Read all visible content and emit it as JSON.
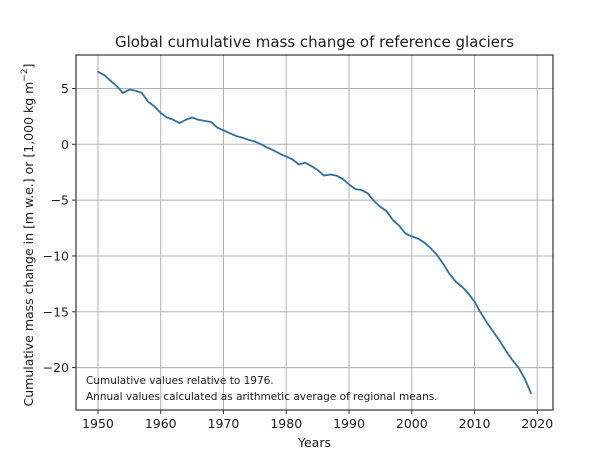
{
  "chart_data": {
    "type": "line",
    "title": "Global cumulative mass change of reference glaciers",
    "xlabel": "Years",
    "ylabel_main": "Cumulative mass change in [m w.e.] or [1,000 kg m",
    "ylabel_sup": "−2",
    "ylabel_end": "]",
    "xlim": [
      1946.5,
      2022.5
    ],
    "ylim": [
      -23.8,
      8.0
    ],
    "xticks": [
      1950,
      1960,
      1970,
      1980,
      1990,
      2000,
      2010,
      2020
    ],
    "xtick_labels": [
      "1950",
      "1960",
      "1970",
      "1980",
      "1990",
      "2000",
      "2010",
      "2020"
    ],
    "yticks": [
      5,
      0,
      -5,
      -10,
      -15,
      -20
    ],
    "ytick_labels": [
      "5",
      "0",
      "−5",
      "−10",
      "−15",
      "−20"
    ],
    "grid": true,
    "legend": null,
    "annotations": [
      "Cumulative values relative to 1976.",
      "Annual values calculated as arithmetic average of regional means."
    ],
    "series": [
      {
        "name": "Cumulative mass change",
        "color": "#2f6fa3",
        "x": [
          1950,
          1951,
          1952,
          1953,
          1954,
          1955,
          1956,
          1957,
          1958,
          1959,
          1960,
          1961,
          1962,
          1963,
          1964,
          1965,
          1966,
          1967,
          1968,
          1969,
          1970,
          1971,
          1972,
          1973,
          1974,
          1975,
          1976,
          1977,
          1978,
          1979,
          1980,
          1981,
          1982,
          1983,
          1984,
          1985,
          1986,
          1987,
          1988,
          1989,
          1990,
          1991,
          1992,
          1993,
          1994,
          1995,
          1996,
          1997,
          1998,
          1999,
          2000,
          2001,
          2002,
          2003,
          2004,
          2005,
          2006,
          2007,
          2008,
          2009,
          2010,
          2011,
          2012,
          2013,
          2014,
          2015,
          2016,
          2017,
          2018,
          2019
        ],
        "y": [
          6.5,
          6.2,
          5.7,
          5.2,
          4.6,
          4.9,
          4.8,
          4.6,
          3.8,
          3.4,
          2.8,
          2.4,
          2.2,
          1.9,
          2.2,
          2.4,
          2.2,
          2.1,
          2.0,
          1.5,
          1.25,
          1.0,
          0.75,
          0.6,
          0.4,
          0.25,
          0.0,
          -0.3,
          -0.55,
          -0.85,
          -1.1,
          -1.35,
          -1.8,
          -1.65,
          -1.95,
          -2.3,
          -2.8,
          -2.7,
          -2.8,
          -3.1,
          -3.6,
          -4.0,
          -4.1,
          -4.4,
          -5.1,
          -5.6,
          -6.0,
          -6.8,
          -7.3,
          -8.0,
          -8.25,
          -8.45,
          -8.8,
          -9.3,
          -9.9,
          -10.7,
          -11.6,
          -12.3,
          -12.75,
          -13.35,
          -14.1,
          -15.1,
          -16.0,
          -16.8,
          -17.6,
          -18.5,
          -19.3,
          -20.0,
          -21.0,
          -22.3
        ]
      }
    ]
  }
}
